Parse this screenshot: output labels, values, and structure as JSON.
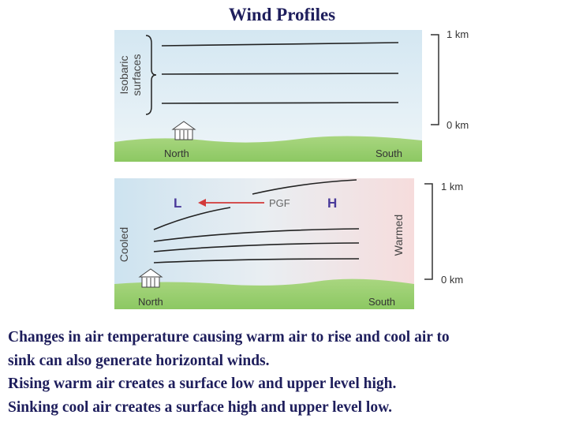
{
  "title": "Wind Profiles",
  "diagrams": [
    {
      "side_label": [
        "Isobaric",
        "surfaces"
      ],
      "scale": [
        "1 km",
        "0 km"
      ],
      "ground": [
        "North",
        "South"
      ]
    },
    {
      "low": "L",
      "arrow_label": "PGF",
      "high": "H",
      "left_label": "Cooled",
      "right_label": "Warmed",
      "scale": [
        "1 km",
        "0 km"
      ],
      "ground": [
        "North",
        "South"
      ]
    }
  ],
  "text": [
    "Changes in air temperature causing warm air to rise and cool air to",
    "sink can also generate horizontal winds.",
    "Rising warm air creates a surface low and upper level high.",
    "Sinking cool air creates a surface high and upper level low."
  ]
}
